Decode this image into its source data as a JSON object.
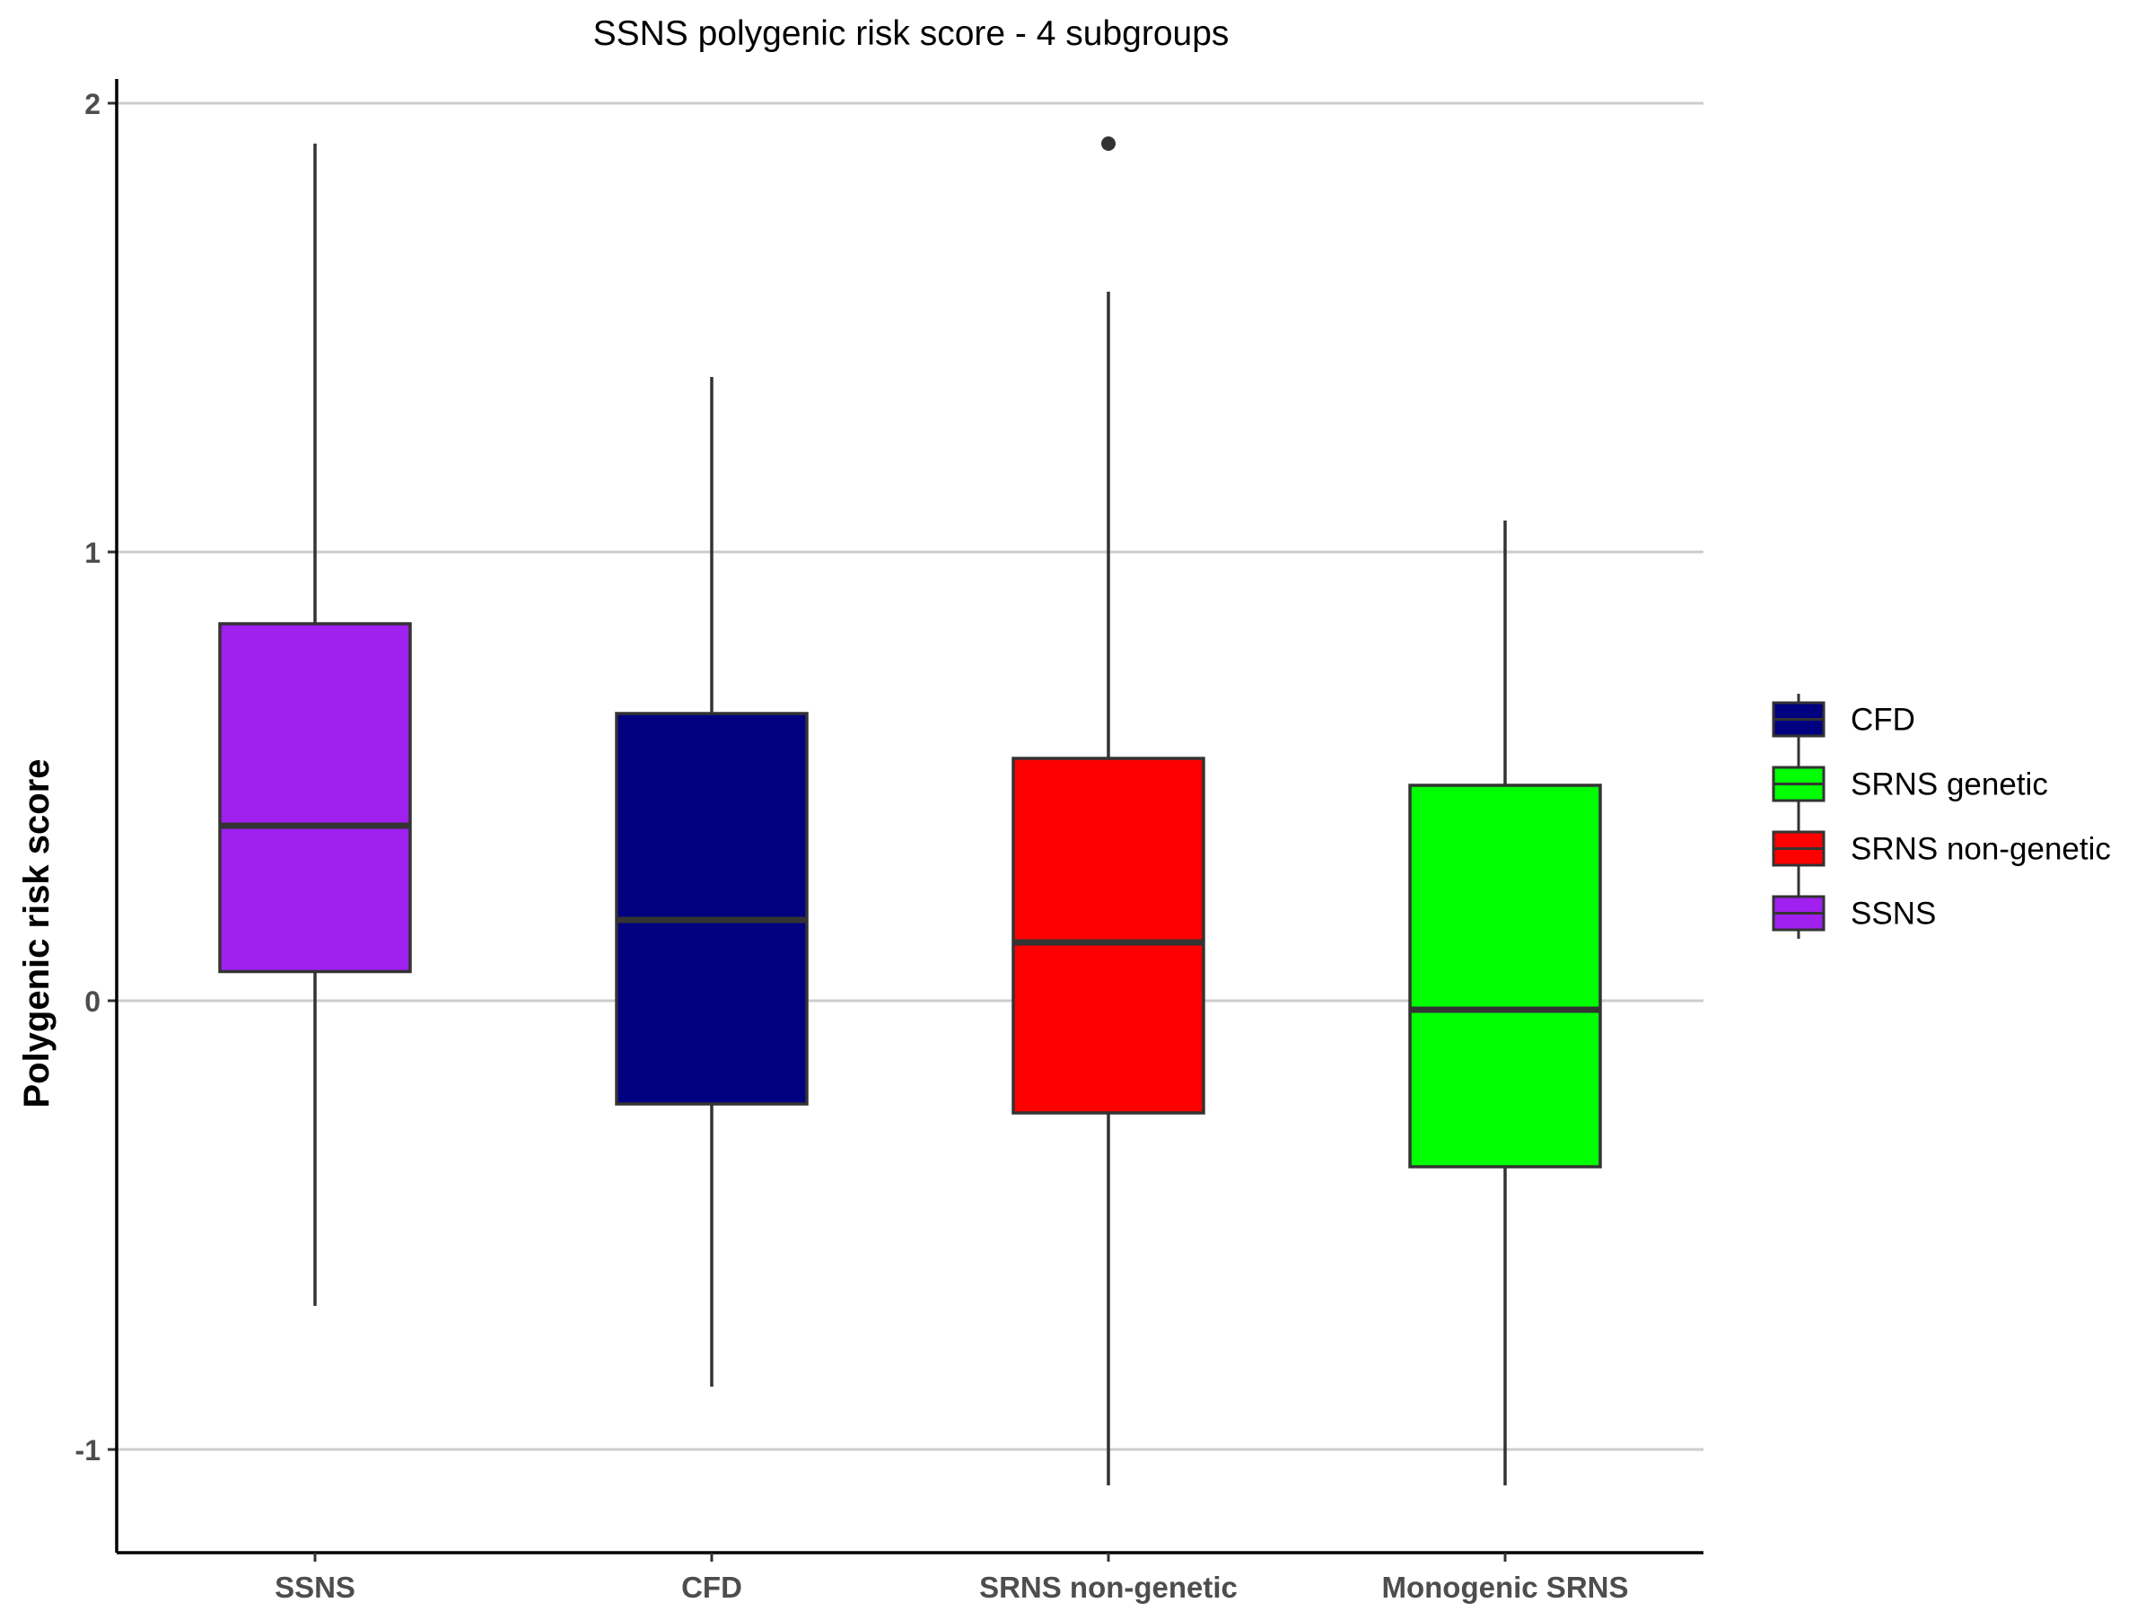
{
  "chart_data": {
    "type": "boxplot",
    "title": "SSNS polygenic risk score - 4 subgroups",
    "xlabel": "",
    "ylabel": "Polygenic risk score",
    "ylim": [
      -1.23,
      2.2
    ],
    "yticks": [
      -1,
      0,
      1,
      2
    ],
    "ytick_labels": [
      "-1",
      "0",
      "1",
      "2"
    ],
    "grid": "horizontal major",
    "legend_position": "right",
    "categories": [
      "SSNS",
      "CFD",
      "SRNS non-genetic",
      "Monogenic SRNS"
    ],
    "boxes": [
      {
        "category": "SSNS",
        "color": "#A020F0",
        "whisker_low": -0.68,
        "q1": 0.065,
        "median": 0.39,
        "q3": 0.84,
        "whisker_high": 1.91,
        "outliers": []
      },
      {
        "category": "CFD",
        "color": "#000080",
        "whisker_low": -0.86,
        "q1": -0.23,
        "median": 0.18,
        "q3": 0.64,
        "whisker_high": 1.39,
        "outliers": []
      },
      {
        "category": "SRNS non-genetic",
        "color": "#FF0000",
        "whisker_low": -1.08,
        "q1": -0.25,
        "median": 0.13,
        "q3": 0.54,
        "whisker_high": 1.58,
        "outliers": [
          1.91
        ]
      },
      {
        "category": "Monogenic SRNS",
        "color": "#00FF00",
        "whisker_low": -1.08,
        "q1": -0.37,
        "median": -0.02,
        "q3": 0.48,
        "whisker_high": 1.07,
        "outliers": []
      }
    ],
    "legend": [
      {
        "label": "CFD",
        "color": "#000080"
      },
      {
        "label": "SRNS genetic",
        "color": "#00FF00"
      },
      {
        "label": "SRNS non-genetic",
        "color": "#FF0000"
      },
      {
        "label": "SSNS",
        "color": "#A020F0"
      }
    ]
  }
}
